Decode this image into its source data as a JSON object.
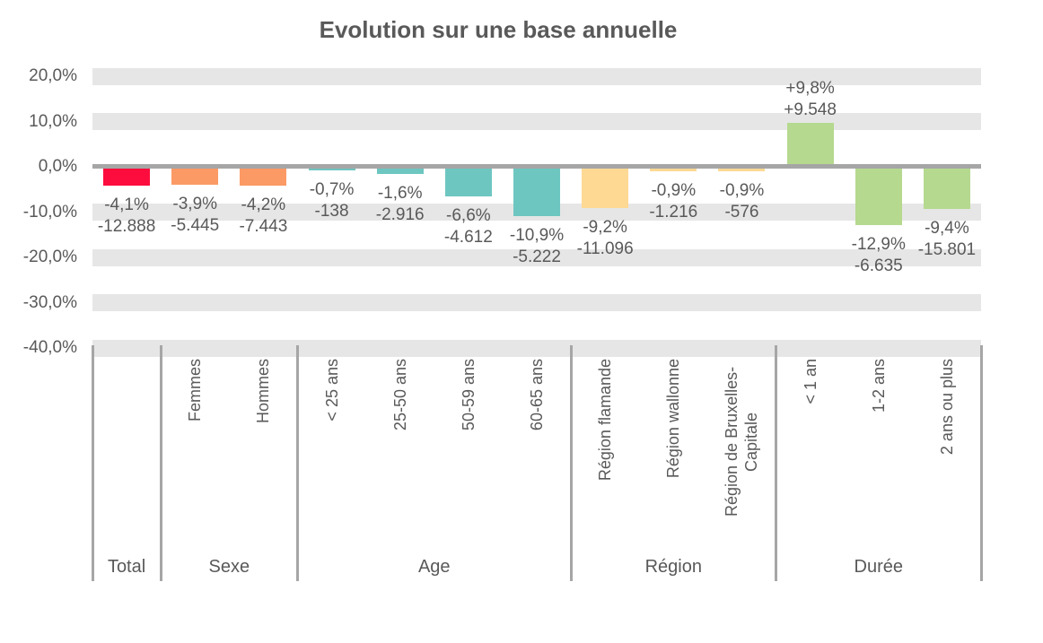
{
  "title": "Evolution sur une base annuelle",
  "colors": {
    "total": "#fc0d3e",
    "sexe": "#fb9a65",
    "age": "#6ec6c1",
    "region": "#fed994",
    "duree": "#b5d98f",
    "grid_band": "#e6e6e6",
    "axis_line": "#a6a6a6",
    "text": "#595959"
  },
  "chart_data": {
    "type": "bar",
    "title": "Evolution sur une base annuelle",
    "xlabel": "",
    "ylabel": "",
    "ylim": [
      -40,
      20
    ],
    "grid": "horizontal-bands",
    "legend": "none",
    "value_label_format": "percent over absolute count",
    "y_ticks": [
      {
        "value": 20,
        "label": "20,0%"
      },
      {
        "value": 10,
        "label": "10,0%"
      },
      {
        "value": 0,
        "label": "0,0%"
      },
      {
        "value": -10,
        "label": "-10,0%"
      },
      {
        "value": -20,
        "label": "-20,0%"
      },
      {
        "value": -30,
        "label": "-30,0%"
      },
      {
        "value": -40,
        "label": "-40,0%"
      }
    ],
    "groups": [
      {
        "label": "Total",
        "count": 1,
        "color_key": "total"
      },
      {
        "label": "Sexe",
        "count": 2,
        "color_key": "sexe"
      },
      {
        "label": "Age",
        "count": 4,
        "color_key": "age"
      },
      {
        "label": "Région",
        "count": 3,
        "color_key": "region"
      },
      {
        "label": "Durée",
        "count": 3,
        "color_key": "duree"
      }
    ],
    "points": [
      {
        "category": "",
        "group": "Total",
        "pct": -4.1,
        "pct_label": "-4,1%",
        "abs_label": "-12.888"
      },
      {
        "category": "Femmes",
        "group": "Sexe",
        "pct": -3.9,
        "pct_label": "-3,9%",
        "abs_label": "-5.445"
      },
      {
        "category": "Hommes",
        "group": "Sexe",
        "pct": -4.2,
        "pct_label": "-4,2%",
        "abs_label": "-7.443"
      },
      {
        "category": "< 25 ans",
        "group": "Age",
        "pct": -0.7,
        "pct_label": "-0,7%",
        "abs_label": "-138"
      },
      {
        "category": "25-50 ans",
        "group": "Age",
        "pct": -1.6,
        "pct_label": "-1,6%",
        "abs_label": "-2.916"
      },
      {
        "category": "50-59 ans",
        "group": "Age",
        "pct": -6.6,
        "pct_label": "-6,6%",
        "abs_label": "-4.612"
      },
      {
        "category": "60-65 ans",
        "group": "Age",
        "pct": -10.9,
        "pct_label": "-10,9%",
        "abs_label": "-5.222"
      },
      {
        "category": "Région flamande",
        "group": "Région",
        "pct": -9.2,
        "pct_label": "-9,2%",
        "abs_label": "-11.096"
      },
      {
        "category": "Région wallonne",
        "group": "Région",
        "pct": -0.9,
        "pct_label": "-0,9%",
        "abs_label": "-1.216"
      },
      {
        "category": "Région de Bruxelles-Capitale",
        "group": "Région",
        "pct": -0.9,
        "pct_label": "-0,9%",
        "abs_label": "-576"
      },
      {
        "category": "< 1 an",
        "group": "Durée",
        "pct": 9.8,
        "pct_label": "+9,8%",
        "abs_label": "+9.548"
      },
      {
        "category": "1-2 ans",
        "group": "Durée",
        "pct": -12.9,
        "pct_label": "-12,9%",
        "abs_label": "-6.635"
      },
      {
        "category": "2 ans ou plus",
        "group": "Durée",
        "pct": -9.4,
        "pct_label": "-9,4%",
        "abs_label": "-15.801"
      }
    ]
  }
}
